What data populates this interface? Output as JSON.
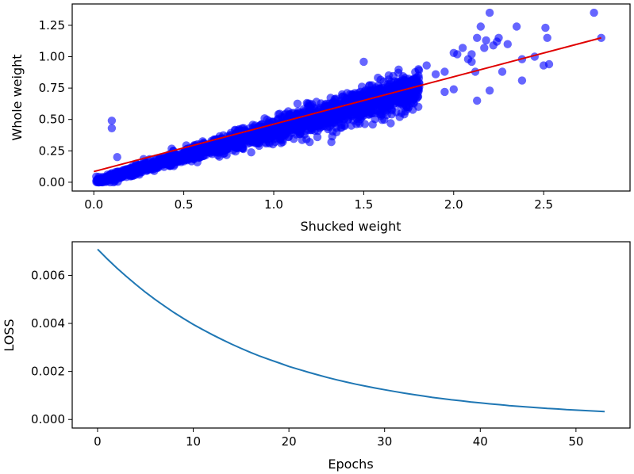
{
  "chart_data": [
    {
      "type": "scatter",
      "xlabel": "Shucked weight",
      "ylabel": "Whole weight",
      "xlim": [
        -0.12,
        2.98
      ],
      "ylim": [
        -0.07,
        1.42
      ],
      "xticks": [
        0.0,
        0.5,
        1.0,
        1.5,
        2.0,
        2.5
      ],
      "xtick_labels": [
        "0.0",
        "0.5",
        "1.0",
        "1.5",
        "2.0",
        "2.5"
      ],
      "yticks": [
        0.0,
        0.25,
        0.5,
        0.75,
        1.0,
        1.25
      ],
      "ytick_labels": [
        "0.00",
        "0.25",
        "0.50",
        "0.75",
        "1.00",
        "1.25"
      ],
      "grid": false,
      "point_color": "#0000ff",
      "fit_color": "#e00000",
      "trend": {
        "x0": 0.0,
        "y0": 0.0,
        "slope": 0.415,
        "noise": 0.035,
        "count": 2200
      },
      "outliers": [
        {
          "x": 0.1,
          "y": 0.49
        },
        {
          "x": 0.1,
          "y": 0.43
        },
        {
          "x": 0.13,
          "y": 0.2
        },
        {
          "x": 1.32,
          "y": 0.32
        },
        {
          "x": 1.2,
          "y": 0.32
        },
        {
          "x": 1.05,
          "y": 0.32
        },
        {
          "x": 1.4,
          "y": 0.58
        },
        {
          "x": 1.5,
          "y": 0.96
        },
        {
          "x": 1.65,
          "y": 0.47
        },
        {
          "x": 1.62,
          "y": 0.56
        },
        {
          "x": 1.8,
          "y": 0.68
        },
        {
          "x": 1.85,
          "y": 0.93
        },
        {
          "x": 1.9,
          "y": 0.86
        },
        {
          "x": 1.95,
          "y": 0.88
        },
        {
          "x": 2.0,
          "y": 1.03
        },
        {
          "x": 2.02,
          "y": 1.02
        },
        {
          "x": 2.05,
          "y": 1.07
        },
        {
          "x": 2.08,
          "y": 0.98
        },
        {
          "x": 2.1,
          "y": 0.96
        },
        {
          "x": 2.12,
          "y": 0.88
        },
        {
          "x": 2.13,
          "y": 1.15
        },
        {
          "x": 2.15,
          "y": 1.24
        },
        {
          "x": 2.17,
          "y": 1.07
        },
        {
          "x": 2.18,
          "y": 1.13
        },
        {
          "x": 2.2,
          "y": 1.35
        },
        {
          "x": 2.22,
          "y": 1.09
        },
        {
          "x": 2.24,
          "y": 1.12
        },
        {
          "x": 2.25,
          "y": 1.15
        },
        {
          "x": 2.27,
          "y": 0.88
        },
        {
          "x": 2.35,
          "y": 1.24
        },
        {
          "x": 2.38,
          "y": 0.98
        },
        {
          "x": 2.38,
          "y": 0.81
        },
        {
          "x": 2.45,
          "y": 1.0
        },
        {
          "x": 2.5,
          "y": 0.93
        },
        {
          "x": 2.51,
          "y": 1.23
        },
        {
          "x": 2.52,
          "y": 1.15
        },
        {
          "x": 2.53,
          "y": 0.94
        },
        {
          "x": 2.78,
          "y": 1.35
        },
        {
          "x": 2.82,
          "y": 1.15
        },
        {
          "x": 2.13,
          "y": 0.65
        },
        {
          "x": 2.2,
          "y": 0.73
        },
        {
          "x": 2.0,
          "y": 0.74
        },
        {
          "x": 1.95,
          "y": 0.72
        },
        {
          "x": 1.7,
          "y": 0.52
        },
        {
          "x": 1.6,
          "y": 0.54
        },
        {
          "x": 1.75,
          "y": 0.6
        },
        {
          "x": 1.55,
          "y": 0.46
        },
        {
          "x": 1.48,
          "y": 0.52
        },
        {
          "x": 2.3,
          "y": 1.1
        },
        {
          "x": 2.1,
          "y": 1.02
        }
      ],
      "fit_line": {
        "x": [
          0.0,
          2.82
        ],
        "y": [
          0.085,
          1.15
        ]
      }
    },
    {
      "type": "line",
      "xlabel": "Epochs",
      "ylabel": "LOSS",
      "xlim": [
        -2.65,
        55.65
      ],
      "ylim": [
        -0.000355,
        0.0074
      ],
      "xticks": [
        0,
        10,
        20,
        30,
        40,
        50
      ],
      "xtick_labels": [
        "0",
        "10",
        "20",
        "30",
        "40",
        "50"
      ],
      "yticks": [
        0.0,
        0.002,
        0.004,
        0.006
      ],
      "ytick_labels": [
        "0.000",
        "0.002",
        "0.004",
        "0.006"
      ],
      "grid": false,
      "line_color": "#1f77b4",
      "series": [
        {
          "x": [
            0,
            1,
            2,
            3,
            4,
            5,
            6,
            7,
            8,
            9,
            10,
            11,
            12,
            13,
            14,
            15,
            16,
            17,
            18,
            19,
            20,
            21,
            22,
            23,
            24,
            25,
            26,
            27,
            28,
            29,
            30,
            31,
            32,
            33,
            34,
            35,
            36,
            37,
            38,
            39,
            40,
            41,
            42,
            43,
            44,
            45,
            46,
            47,
            48,
            49,
            50,
            51,
            52,
            53
          ],
          "values": [
            0.00709,
            0.00669,
            0.00631,
            0.00596,
            0.00562,
            0.0053,
            0.005,
            0.00472,
            0.00445,
            0.0042,
            0.00396,
            0.00374,
            0.00353,
            0.00333,
            0.00314,
            0.00296,
            0.00279,
            0.00263,
            0.00249,
            0.00235,
            0.00221,
            0.00209,
            0.00197,
            0.00186,
            0.00175,
            0.00165,
            0.00156,
            0.00147,
            0.00139,
            0.00131,
            0.00124,
            0.00117,
            0.0011,
            0.00104,
            0.00098,
            0.00092,
            0.00087,
            0.00082,
            0.00078,
            0.00073,
            0.00069,
            0.00065,
            0.00062,
            0.00058,
            0.00055,
            0.00052,
            0.00049,
            0.00046,
            0.00044,
            0.00041,
            0.00039,
            0.00037,
            0.00035,
            0.00033
          ]
        }
      ]
    }
  ]
}
